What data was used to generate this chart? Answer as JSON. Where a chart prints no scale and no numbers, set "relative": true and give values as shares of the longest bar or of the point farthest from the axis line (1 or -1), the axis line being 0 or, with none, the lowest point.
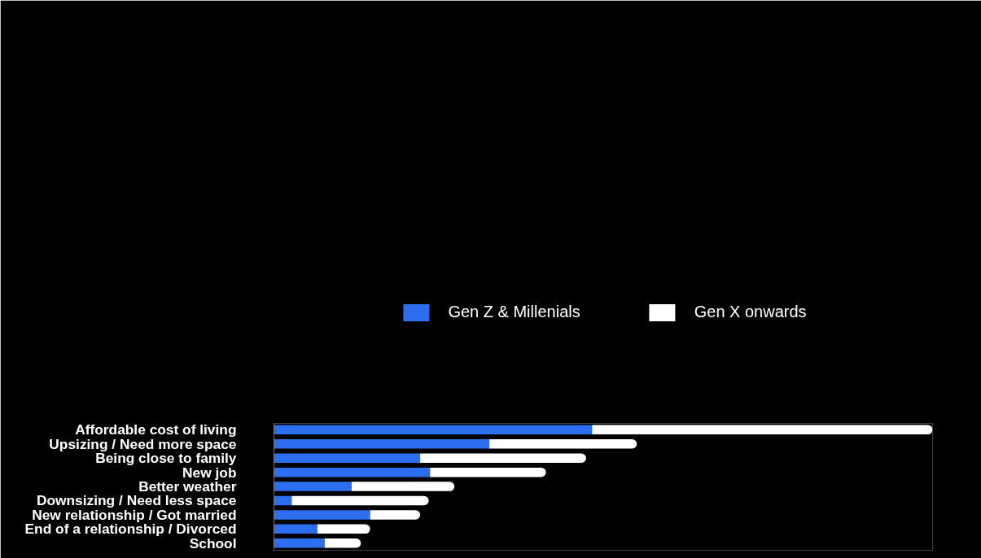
{
  "chart_data": {
    "type": "bar",
    "orientation": "horizontal",
    "stacked": true,
    "relative": true,
    "legend": "top",
    "categories": [
      "Affordable cost of living",
      "Upsizing / Need more space",
      "Being close to family",
      "New job",
      "Better weather",
      "Downsizing / Need less space",
      "New relationship / Got married",
      "End of a relationship / Divorced",
      "School"
    ],
    "series": [
      {
        "name": "Gen Z & Millenials",
        "color": "#2b6ff0",
        "values": [
          0.483,
          0.327,
          0.222,
          0.237,
          0.118,
          0.027,
          0.146,
          0.066,
          0.077
        ]
      },
      {
        "name": "Gen X onwards",
        "color": "#ffffff",
        "values": [
          0.517,
          0.224,
          0.252,
          0.176,
          0.156,
          0.208,
          0.076,
          0.08,
          0.055
        ]
      }
    ]
  }
}
